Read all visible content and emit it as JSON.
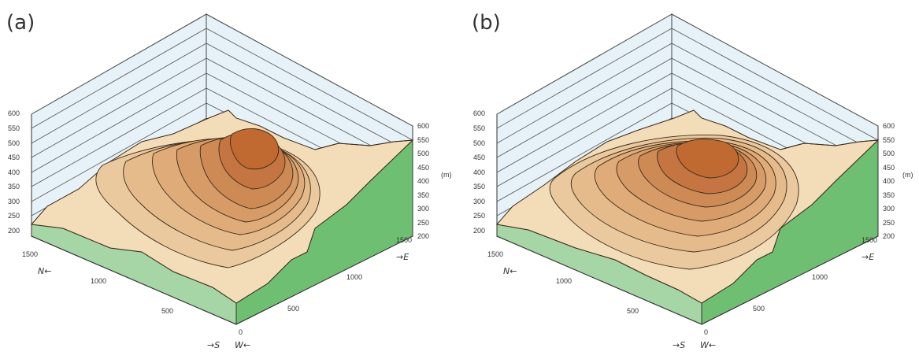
{
  "panels": [
    {
      "label": "(a)",
      "z_ticks_left": [
        "600",
        "550",
        "500",
        "450",
        "400",
        "350",
        "300",
        "250",
        "200"
      ],
      "z_ticks_right": [
        "600",
        "550",
        "500",
        "450",
        "400",
        "350",
        "300",
        "250",
        "200"
      ],
      "unit": "(m)",
      "y_ticks": [
        "1500",
        "1000",
        "500"
      ],
      "x_ticks": [
        "0",
        "500",
        "1000",
        "1500"
      ],
      "dir_north": "N←",
      "dir_south": "→S",
      "dir_west": "W←",
      "dir_east": "→E"
    },
    {
      "label": "(b)",
      "z_ticks_left": [
        "600",
        "550",
        "500",
        "450",
        "400",
        "350",
        "300",
        "250",
        "200"
      ],
      "z_ticks_right": [
        "600",
        "550",
        "500",
        "450",
        "400",
        "350",
        "300",
        "250",
        "200"
      ],
      "unit": "(m)",
      "y_ticks": [
        "1500",
        "1000",
        "500"
      ],
      "x_ticks": [
        "0",
        "500",
        "1000",
        "1500"
      ],
      "dir_north": "N←",
      "dir_south": "→S",
      "dir_west": "W←",
      "dir_east": "→E"
    }
  ],
  "colors": {
    "wall_fill": "#e6f2f7",
    "wall_line": "#444444",
    "ground_side_left": "#a6d6a6",
    "ground_side_right": "#6fbf73",
    "terrain_low": "#f3dcb8",
    "terrain_mid": "#dda878",
    "terrain_high": "#c05a1c",
    "contour": "#3a2a1a"
  }
}
